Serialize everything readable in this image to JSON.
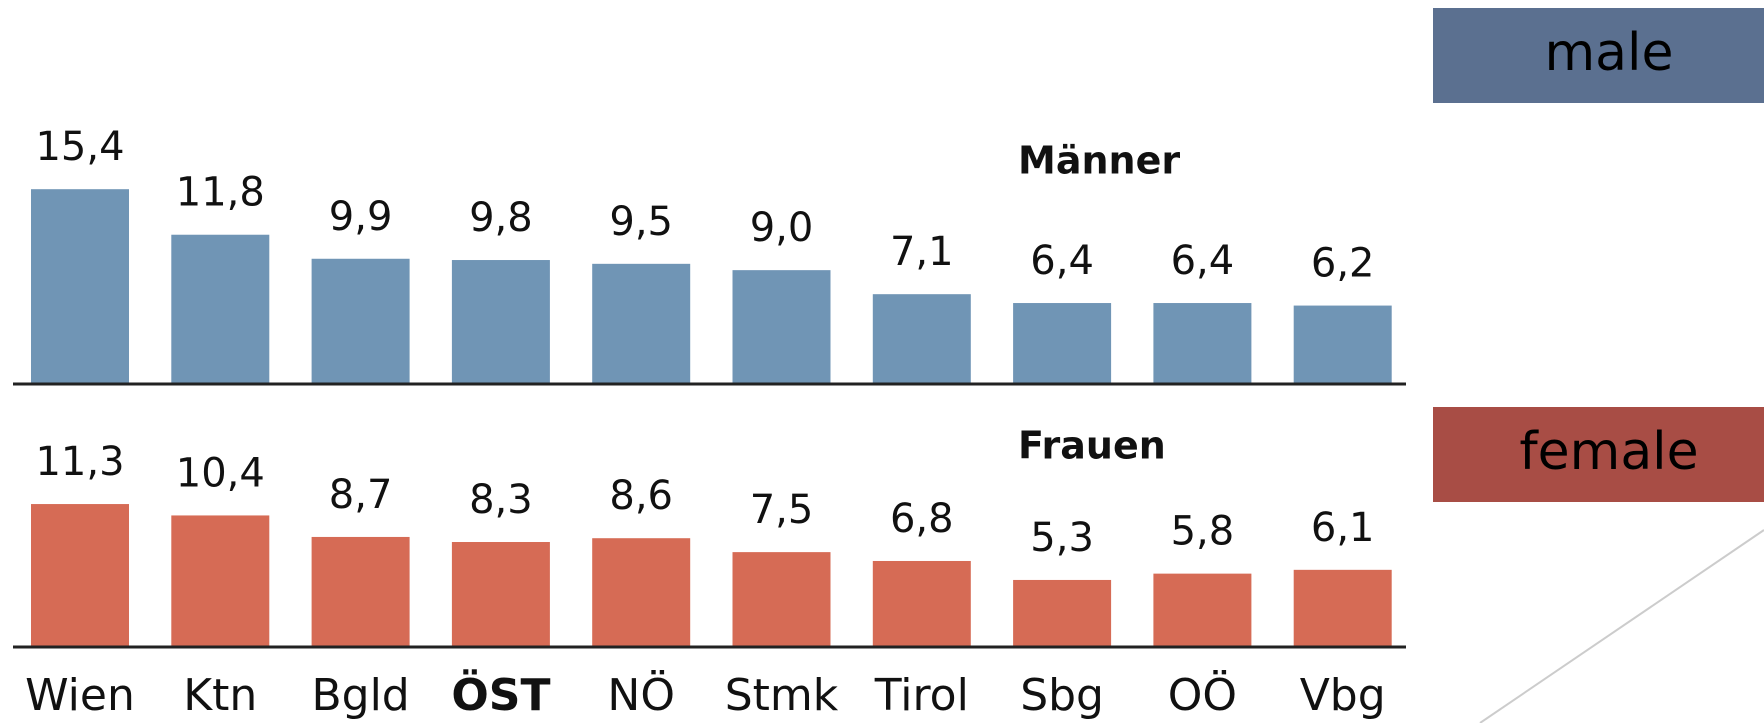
{
  "chart_data": {
    "type": "bar",
    "categories": [
      "Wien",
      "Ktn",
      "Bgld",
      "ÖST",
      "NÖ",
      "Stmk",
      "Tirol",
      "Sbg",
      "OÖ",
      "Vbg"
    ],
    "series": [
      {
        "name": "Männer",
        "color": "#7095b5",
        "values": [
          15.4,
          11.8,
          9.9,
          9.8,
          9.5,
          9.0,
          7.1,
          6.4,
          6.4,
          6.2
        ],
        "value_labels": [
          "15,4",
          "11,8",
          "9,9",
          "9,8",
          "9,5",
          "9,0",
          "7,1",
          "6,4",
          "6,4",
          "6,2"
        ]
      },
      {
        "name": "Frauen",
        "color": "#d66b55",
        "values": [
          11.3,
          10.4,
          8.7,
          8.3,
          8.6,
          7.5,
          6.8,
          5.3,
          5.8,
          6.1
        ],
        "value_labels": [
          "11,3",
          "10,4",
          "8,7",
          "8,3",
          "8,6",
          "7,5",
          "6,8",
          "5,3",
          "5,8",
          "6,1"
        ]
      }
    ],
    "annotations": [
      {
        "text": "male",
        "color": "#5b7090"
      },
      {
        "text": "female",
        "color": "#a84d45"
      }
    ]
  }
}
